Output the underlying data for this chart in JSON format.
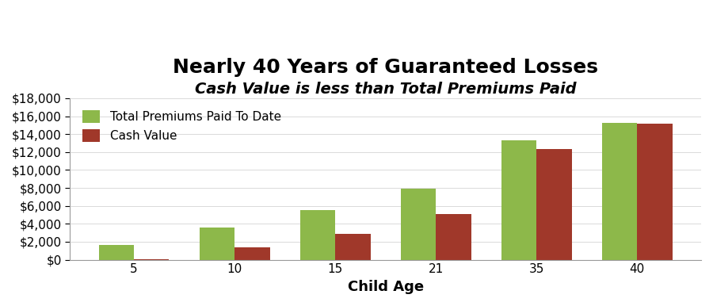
{
  "title": "Nearly 40 Years of Guaranteed Losses",
  "subtitle": "Cash Value is less than Total Premiums Paid",
  "xlabel": "Child Age",
  "categories": [
    "5",
    "10",
    "15",
    "21",
    "35",
    "40"
  ],
  "premiums": [
    1650,
    3600,
    5500,
    7900,
    13300,
    15300
  ],
  "cash_value": [
    50,
    1400,
    2900,
    5100,
    12300,
    15200
  ],
  "premium_color": "#8DB84A",
  "cash_color": "#A0382A",
  "ylim": [
    0,
    18000
  ],
  "ytick_step": 2000,
  "legend_labels": [
    "Total Premiums Paid To Date",
    "Cash Value"
  ],
  "bar_width": 0.35,
  "background_color": "#FFFFFF",
  "title_fontsize": 18,
  "subtitle_fontsize": 14,
  "xlabel_fontsize": 13,
  "tick_fontsize": 11
}
